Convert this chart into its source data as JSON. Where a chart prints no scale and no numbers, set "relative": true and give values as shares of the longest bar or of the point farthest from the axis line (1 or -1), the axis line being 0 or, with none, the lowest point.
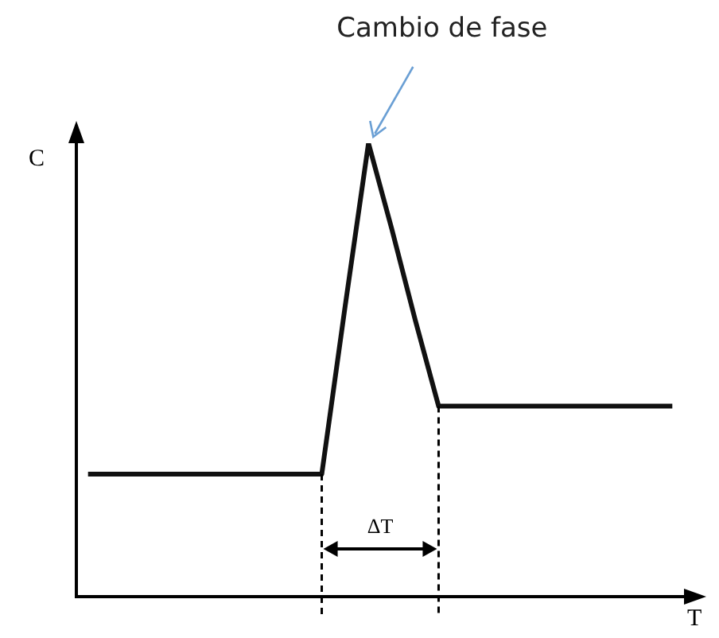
{
  "chart_data": {
    "type": "line",
    "xlabel": "T",
    "ylabel": "C",
    "relative": true,
    "color": "#111111",
    "marker": "none",
    "line_style": "solid",
    "categories": [
      null,
      null,
      null,
      null,
      null,
      null,
      null,
      null,
      null,
      null,
      null,
      null,
      null,
      null,
      null,
      null,
      null,
      null,
      null,
      null,
      null,
      null,
      null,
      null,
      null,
      null
    ],
    "values": [
      0.27,
      0.27,
      0.27,
      0.27,
      0.27,
      0.27,
      0.27,
      0.27,
      0.27,
      0.27,
      0.27,
      0.64,
      1,
      0.81,
      0.61,
      0.42,
      0.42,
      0.42,
      0.42,
      0.42,
      0.42,
      0.42,
      0.42,
      0.42,
      0.42,
      0.42
    ],
    "annotations": [
      "Cambio de fase",
      "ΔT"
    ]
  }
}
